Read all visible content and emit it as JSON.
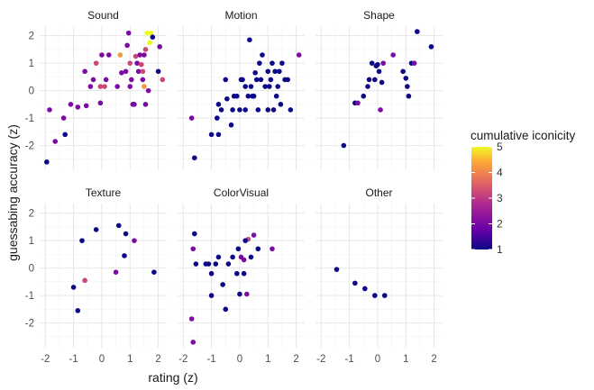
{
  "chart_data": {
    "type": "scatter",
    "facets": [
      {
        "name": "Sound",
        "points": [
          [
            -1.95,
            -2.6
          ],
          [
            -1.85,
            -0.7
          ],
          [
            -1.65,
            -1.85
          ],
          [
            -1.35,
            -1.0
          ],
          [
            -1.3,
            -1.6
          ],
          [
            -1.1,
            -0.5
          ],
          [
            -0.85,
            -0.6
          ],
          [
            -0.6,
            0.7
          ],
          [
            -0.55,
            -0.55
          ],
          [
            -0.4,
            0.15
          ],
          [
            -0.3,
            0.4
          ],
          [
            -0.2,
            1.0
          ],
          [
            -0.05,
            -0.45
          ],
          [
            -0.05,
            0.15
          ],
          [
            0.0,
            1.3
          ],
          [
            0.1,
            0.15
          ],
          [
            0.15,
            0.4
          ],
          [
            0.25,
            1.3
          ],
          [
            0.55,
            0.15
          ],
          [
            0.65,
            1.3
          ],
          [
            0.7,
            0.65
          ],
          [
            0.85,
            0.7
          ],
          [
            0.9,
            1.65
          ],
          [
            0.95,
            2.1
          ],
          [
            1.0,
            0.15
          ],
          [
            1.05,
            0.4
          ],
          [
            1.1,
            -0.5
          ],
          [
            1.15,
            -0.5
          ],
          [
            1.2,
            1.25
          ],
          [
            1.25,
            1.0
          ],
          [
            1.3,
            0.7
          ],
          [
            1.35,
            1.3
          ],
          [
            1.4,
            0.95
          ],
          [
            1.45,
            0.4
          ],
          [
            1.45,
            0.7
          ],
          [
            1.5,
            1.3
          ],
          [
            1.5,
            0.15
          ],
          [
            1.55,
            -0.5
          ],
          [
            1.55,
            1.5
          ],
          [
            1.6,
            2.1
          ],
          [
            1.7,
            1.75
          ],
          [
            1.75,
            2.1
          ],
          [
            1.8,
            1.95
          ],
          [
            2.0,
            0.7
          ],
          [
            2.05,
            1.6
          ],
          [
            2.15,
            0.4
          ],
          [
            1.65,
            0.0
          ],
          [
            1.0,
            1.0
          ]
        ],
        "values": [
          1,
          2,
          2,
          2,
          1,
          2,
          2,
          2,
          2,
          2,
          2,
          3,
          2,
          3,
          2,
          3,
          2,
          2,
          2,
          4,
          2,
          2,
          2,
          2,
          2,
          2,
          2,
          2,
          3,
          2,
          2,
          2,
          3,
          2,
          3,
          2,
          4,
          2,
          3,
          5,
          5,
          5,
          1,
          1,
          2,
          3,
          2,
          3
        ]
      },
      {
        "name": "Motion",
        "points": [
          [
            -1.7,
            -1.0
          ],
          [
            -1.6,
            -2.45
          ],
          [
            -1.0,
            -1.6
          ],
          [
            -0.8,
            -1.0
          ],
          [
            -0.75,
            -1.6
          ],
          [
            -0.75,
            -0.5
          ],
          [
            -0.65,
            -0.7
          ],
          [
            -0.5,
            0.4
          ],
          [
            -0.45,
            -0.3
          ],
          [
            -0.3,
            -1.25
          ],
          [
            -0.25,
            -0.7
          ],
          [
            -0.2,
            -0.2
          ],
          [
            -0.1,
            -0.2
          ],
          [
            0.0,
            -0.7
          ],
          [
            0.05,
            0.4
          ],
          [
            0.1,
            0.4
          ],
          [
            0.2,
            0.15
          ],
          [
            0.2,
            -0.7
          ],
          [
            0.3,
            -0.2
          ],
          [
            0.35,
            1.85
          ],
          [
            0.4,
            0.15
          ],
          [
            0.45,
            -0.2
          ],
          [
            0.5,
            -0.2
          ],
          [
            0.55,
            0.65
          ],
          [
            0.65,
            -0.7
          ],
          [
            0.7,
            1.0
          ],
          [
            0.75,
            0.4
          ],
          [
            0.8,
            1.3
          ],
          [
            0.9,
            0.15
          ],
          [
            1.0,
            -0.7
          ],
          [
            1.05,
            0.15
          ],
          [
            1.1,
            0.4
          ],
          [
            1.15,
            1.0
          ],
          [
            1.2,
            -0.7
          ],
          [
            1.25,
            0.7
          ],
          [
            1.3,
            -0.2
          ],
          [
            1.35,
            0.15
          ],
          [
            1.4,
            0.7
          ],
          [
            1.45,
            -0.5
          ],
          [
            1.5,
            1.0
          ],
          [
            1.6,
            0.4
          ],
          [
            1.7,
            0.4
          ],
          [
            1.8,
            -0.7
          ],
          [
            2.1,
            1.3
          ],
          [
            0.6,
            0.4
          ],
          [
            1.0,
            0.7
          ]
        ],
        "values": [
          2,
          1,
          1,
          1,
          1,
          1,
          1,
          1,
          1,
          1,
          1,
          1,
          1,
          1,
          1,
          1,
          1,
          1,
          1,
          1,
          1,
          1,
          1,
          1,
          1,
          1,
          1,
          1,
          1,
          1,
          1,
          1,
          1,
          1,
          1,
          1,
          1,
          1,
          1,
          1,
          1,
          1,
          1,
          2,
          1,
          1
        ]
      },
      {
        "name": "Shape",
        "points": [
          [
            -1.2,
            -2.0
          ],
          [
            -0.8,
            -0.45
          ],
          [
            -0.7,
            -0.45
          ],
          [
            -0.5,
            -0.2
          ],
          [
            -0.35,
            0.15
          ],
          [
            -0.3,
            0.4
          ],
          [
            -0.2,
            1.0
          ],
          [
            -0.1,
            0.4
          ],
          [
            -0.05,
            0.9
          ],
          [
            0.0,
            0.95
          ],
          [
            0.05,
            0.7
          ],
          [
            0.1,
            -0.7
          ],
          [
            0.15,
            0.3
          ],
          [
            0.2,
            1.0
          ],
          [
            0.55,
            1.3
          ],
          [
            0.9,
            0.7
          ],
          [
            1.0,
            0.45
          ],
          [
            1.05,
            0.15
          ],
          [
            1.1,
            -0.2
          ],
          [
            1.2,
            1.0
          ],
          [
            1.3,
            1.0
          ],
          [
            1.4,
            2.15
          ],
          [
            1.9,
            1.6
          ]
        ],
        "values": [
          1,
          1,
          2,
          1,
          1,
          1,
          1,
          1,
          1,
          1,
          1,
          2,
          1,
          2,
          2,
          1,
          1,
          1,
          1,
          1,
          2,
          1,
          1
        ]
      },
      {
        "name": "Texture",
        "points": [
          [
            -1.0,
            -0.7
          ],
          [
            -0.85,
            -1.55
          ],
          [
            -0.7,
            1.0
          ],
          [
            -0.6,
            -0.45
          ],
          [
            -0.2,
            1.4
          ],
          [
            0.5,
            -0.15
          ],
          [
            0.6,
            1.55
          ],
          [
            0.85,
            1.25
          ],
          [
            0.8,
            0.45
          ],
          [
            1.15,
            1.0
          ],
          [
            1.85,
            -0.15
          ]
        ],
        "values": [
          1,
          1,
          1,
          3,
          1,
          2,
          1,
          1,
          1,
          2,
          1
        ]
      },
      {
        "name": "ColorVisual",
        "points": [
          [
            -1.7,
            -1.85
          ],
          [
            -1.65,
            -2.7
          ],
          [
            -1.65,
            0.7
          ],
          [
            -1.6,
            1.25
          ],
          [
            -1.55,
            0.15
          ],
          [
            -1.2,
            0.15
          ],
          [
            -1.1,
            0.15
          ],
          [
            -1.0,
            -0.2
          ],
          [
            -1.0,
            -1.0
          ],
          [
            -0.85,
            0.15
          ],
          [
            -0.75,
            0.4
          ],
          [
            -0.6,
            -0.6
          ],
          [
            -0.5,
            -1.5
          ],
          [
            -0.4,
            0.15
          ],
          [
            -0.25,
            0.4
          ],
          [
            -0.1,
            -0.2
          ],
          [
            -0.05,
            0.7
          ],
          [
            0.0,
            -0.95
          ],
          [
            0.05,
            0.4
          ],
          [
            0.15,
            -0.2
          ],
          [
            0.15,
            0.3
          ],
          [
            0.25,
            -0.95
          ],
          [
            0.3,
            1.05
          ],
          [
            0.4,
            0.4
          ],
          [
            0.5,
            1.2
          ],
          [
            0.65,
            0.7
          ],
          [
            1.15,
            0.7
          ],
          [
            0.2,
            1.0
          ]
        ],
        "values": [
          2,
          2,
          2,
          1,
          1,
          1,
          1,
          1,
          1,
          1,
          1,
          1,
          1,
          1,
          1,
          1,
          1,
          1,
          2,
          1,
          2,
          2,
          3,
          1,
          2,
          1,
          2,
          1
        ]
      },
      {
        "name": "Other",
        "points": [
          [
            -1.45,
            -0.05
          ],
          [
            -0.8,
            -0.55
          ],
          [
            -0.45,
            -0.75
          ],
          [
            -0.1,
            -1.0
          ],
          [
            0.25,
            -1.0
          ]
        ],
        "values": [
          1,
          1,
          1,
          1,
          1
        ]
      }
    ],
    "xlabel": "rating (z)",
    "ylabel": "guessabing accuracy (z)",
    "xlim": [
      -2.2,
      2.3
    ],
    "ylim": [
      -2.9,
      2.35
    ],
    "x_ticks": [
      -2,
      -1,
      0,
      1,
      2
    ],
    "y_ticks": [
      -2,
      -1,
      0,
      1,
      2
    ],
    "legend": {
      "title": "cumulative iconicity",
      "ticks": [
        1,
        2,
        3,
        4,
        5
      ],
      "min": 1,
      "max": 5,
      "placement": "right"
    },
    "colors": [
      "#0d0887",
      "#6a00a8",
      "#b12a90",
      "#e16462",
      "#fca636",
      "#f0f921"
    ],
    "grid": true
  }
}
